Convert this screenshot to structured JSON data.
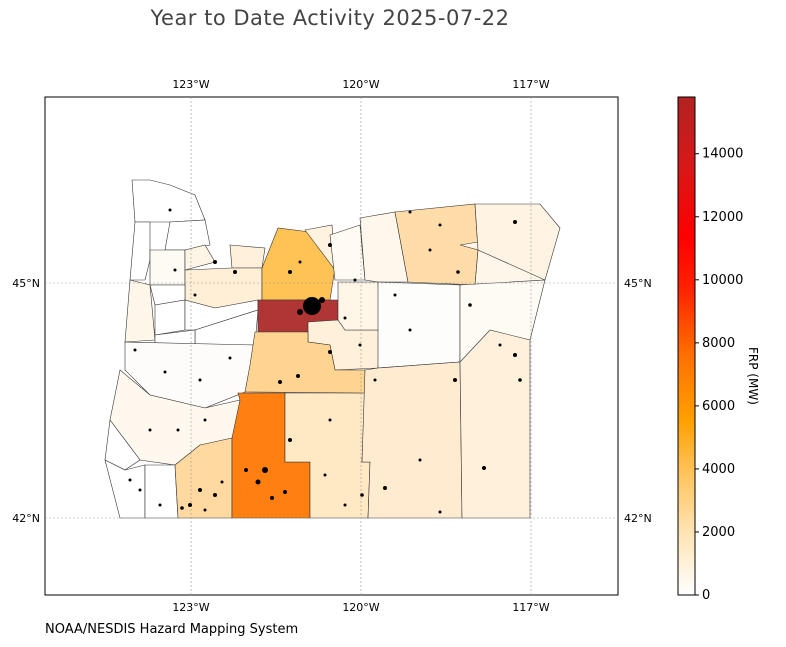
{
  "title": "Year to Date Activity 2025-07-22",
  "credit": "NOAA/NESDIS Hazard Mapping System",
  "colorbar": {
    "label": "FRP (MW)",
    "ticks": [
      "0",
      "2000",
      "4000",
      "6000",
      "8000",
      "10000",
      "12000",
      "14000"
    ],
    "tick_values": [
      0,
      2000,
      4000,
      6000,
      8000,
      10000,
      12000,
      14000
    ],
    "max": 15800,
    "colors": [
      "#ffffff",
      "#ffd9a0",
      "#ffad33",
      "#ff8000",
      "#ff3300",
      "#ff0000",
      "#b22222"
    ]
  },
  "map": {
    "lon_ticks_top": [
      "123°W",
      "120°W",
      "117°W"
    ],
    "lon_ticks_bottom": [
      "123°W",
      "120°W",
      "117°W"
    ],
    "lat_ticks_left": [
      "45°N",
      "42°N"
    ],
    "lat_ticks_right": [
      "45°N",
      "42°N"
    ]
  }
}
